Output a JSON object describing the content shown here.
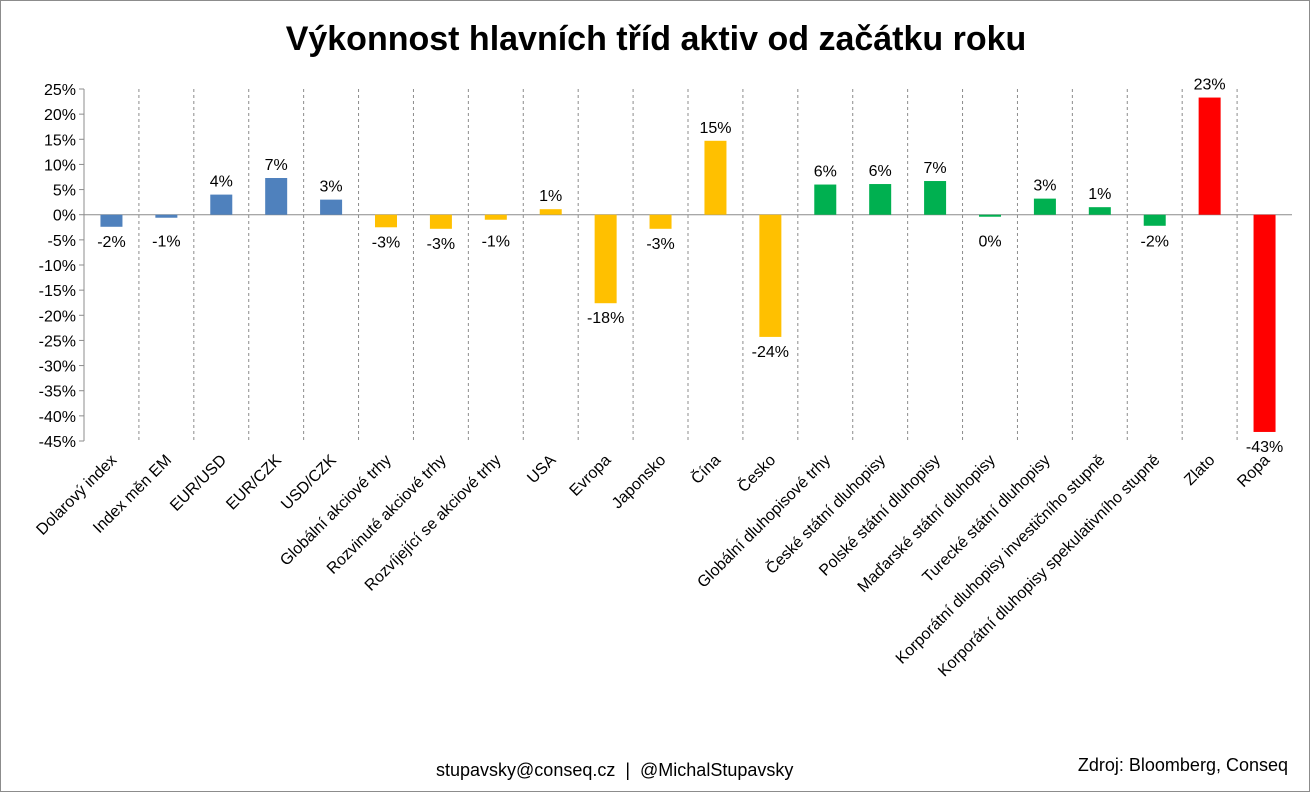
{
  "footer": {
    "contact": "stupavsky@conseq.cz  |  @MichalStupavsky",
    "source": "Zdroj: Bloomberg, Conseq"
  },
  "chart_data": {
    "type": "bar",
    "title": "Výkonnost hlavních tříd aktiv od začátku roku",
    "xlabel": "",
    "ylabel": "",
    "ylim": [
      -45,
      25
    ],
    "ytick_step": 5,
    "y_unit": "%",
    "grid": "vertical dashed separators between categories",
    "legend": "none",
    "categories": [
      "Dolarový index",
      "Index měn EM",
      "EUR/USD",
      "EUR/CZK",
      "USD/CZK",
      "Globální akciové trhy",
      "Rozvinuté akciové trhy",
      "Rozvíjející se akciové trhy",
      "USA",
      "Evropa",
      "Japonsko",
      "Čína",
      "Česko",
      "Globální dluhopisové trhy",
      "České státní dluhopisy",
      "Polské státní dluhopisy",
      "Maďarské státní dluhopisy",
      "Turecké státní dluhopisy",
      "Korporátní dluhopisy investičního stupně",
      "Korporátní dluhopisy spekulativního stupně",
      "Zlato",
      "Ropa"
    ],
    "values": [
      -2.4,
      -0.6,
      4.0,
      7.3,
      3.0,
      -2.5,
      -2.8,
      -1.0,
      1.1,
      -17.6,
      -2.8,
      14.7,
      -24.3,
      6.0,
      6.1,
      6.7,
      -0.4,
      3.2,
      1.5,
      -2.2,
      23.3,
      -43.2
    ],
    "data_labels": [
      "-2%",
      "-1%",
      "4%",
      "7%",
      "3%",
      "-3%",
      "-3%",
      "-1%",
      "1%",
      "-18%",
      "-3%",
      "15%",
      "-24%",
      "6%",
      "6%",
      "7%",
      "0%",
      "3%",
      "1%",
      "-2%",
      "23%",
      "-43%"
    ],
    "colors": [
      "#4f81bd",
      "#4f81bd",
      "#4f81bd",
      "#4f81bd",
      "#4f81bd",
      "#ffc000",
      "#ffc000",
      "#ffc000",
      "#ffc000",
      "#ffc000",
      "#ffc000",
      "#ffc000",
      "#ffc000",
      "#00b050",
      "#00b050",
      "#00b050",
      "#00b050",
      "#00b050",
      "#00b050",
      "#00b050",
      "#ff0000",
      "#ff0000"
    ]
  }
}
